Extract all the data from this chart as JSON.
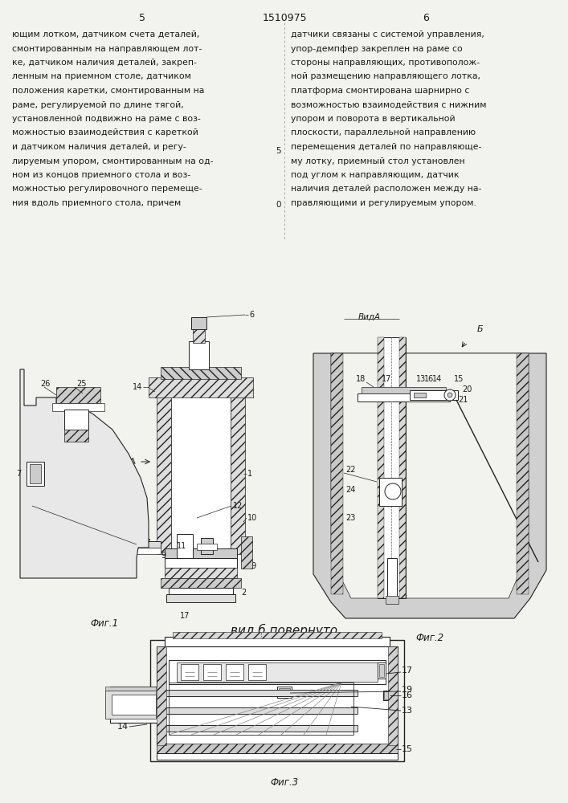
{
  "page_title": "1510975",
  "page_num_left": "5",
  "page_num_right": "6",
  "bg_color": "#f2f2ee",
  "text_color": "#1a1a1a",
  "line_color": "#222222",
  "hatch_color": "#333333",
  "left_text_lines": [
    "ющим лотком, датчиком счета деталей,",
    "смонтированным на направляющем лот-",
    "ке, датчиком наличия деталей, закреп-",
    "ленным на приемном столе, датчиком",
    "положения каретки, смонтированным на",
    "раме, регулируемой по длине тягой,",
    "установленной подвижно на раме с воз-",
    "можностью взаимодействия с кареткой",
    "и датчиком наличия деталей, и регу-",
    "лируемым упором, смонтированным на од-",
    "ном из концов приемного стола и воз-",
    "можностью регулировочного перемеще-",
    "ния вдоль приемного стола, причем"
  ],
  "right_text_lines": [
    "датчики связаны с системой управления,",
    "упор-демпфер закреплен на раме со",
    "стороны направляющих, противополож-",
    "ной размещению направляющего лотка,",
    "платформа смонтирована шарнирно с",
    "возможностью взаимодействия с нижним",
    "упором и поворота в вертикальной",
    "плоскости, параллельной направлению",
    "перемещения деталей по направляюще-",
    "му лотку, приемный стол установлен",
    "под углом к направляющим, датчик",
    "наличия деталей расположен между на-",
    "правляющими и регулируемым упором."
  ],
  "fig1_caption": "Фиг.1",
  "fig2_caption": "Фиг.2",
  "fig3_caption": "Фиг.3",
  "vid_b_caption": "вид б повернуто",
  "vid_a_label": "ВидА",
  "vid_b_label": "Б"
}
